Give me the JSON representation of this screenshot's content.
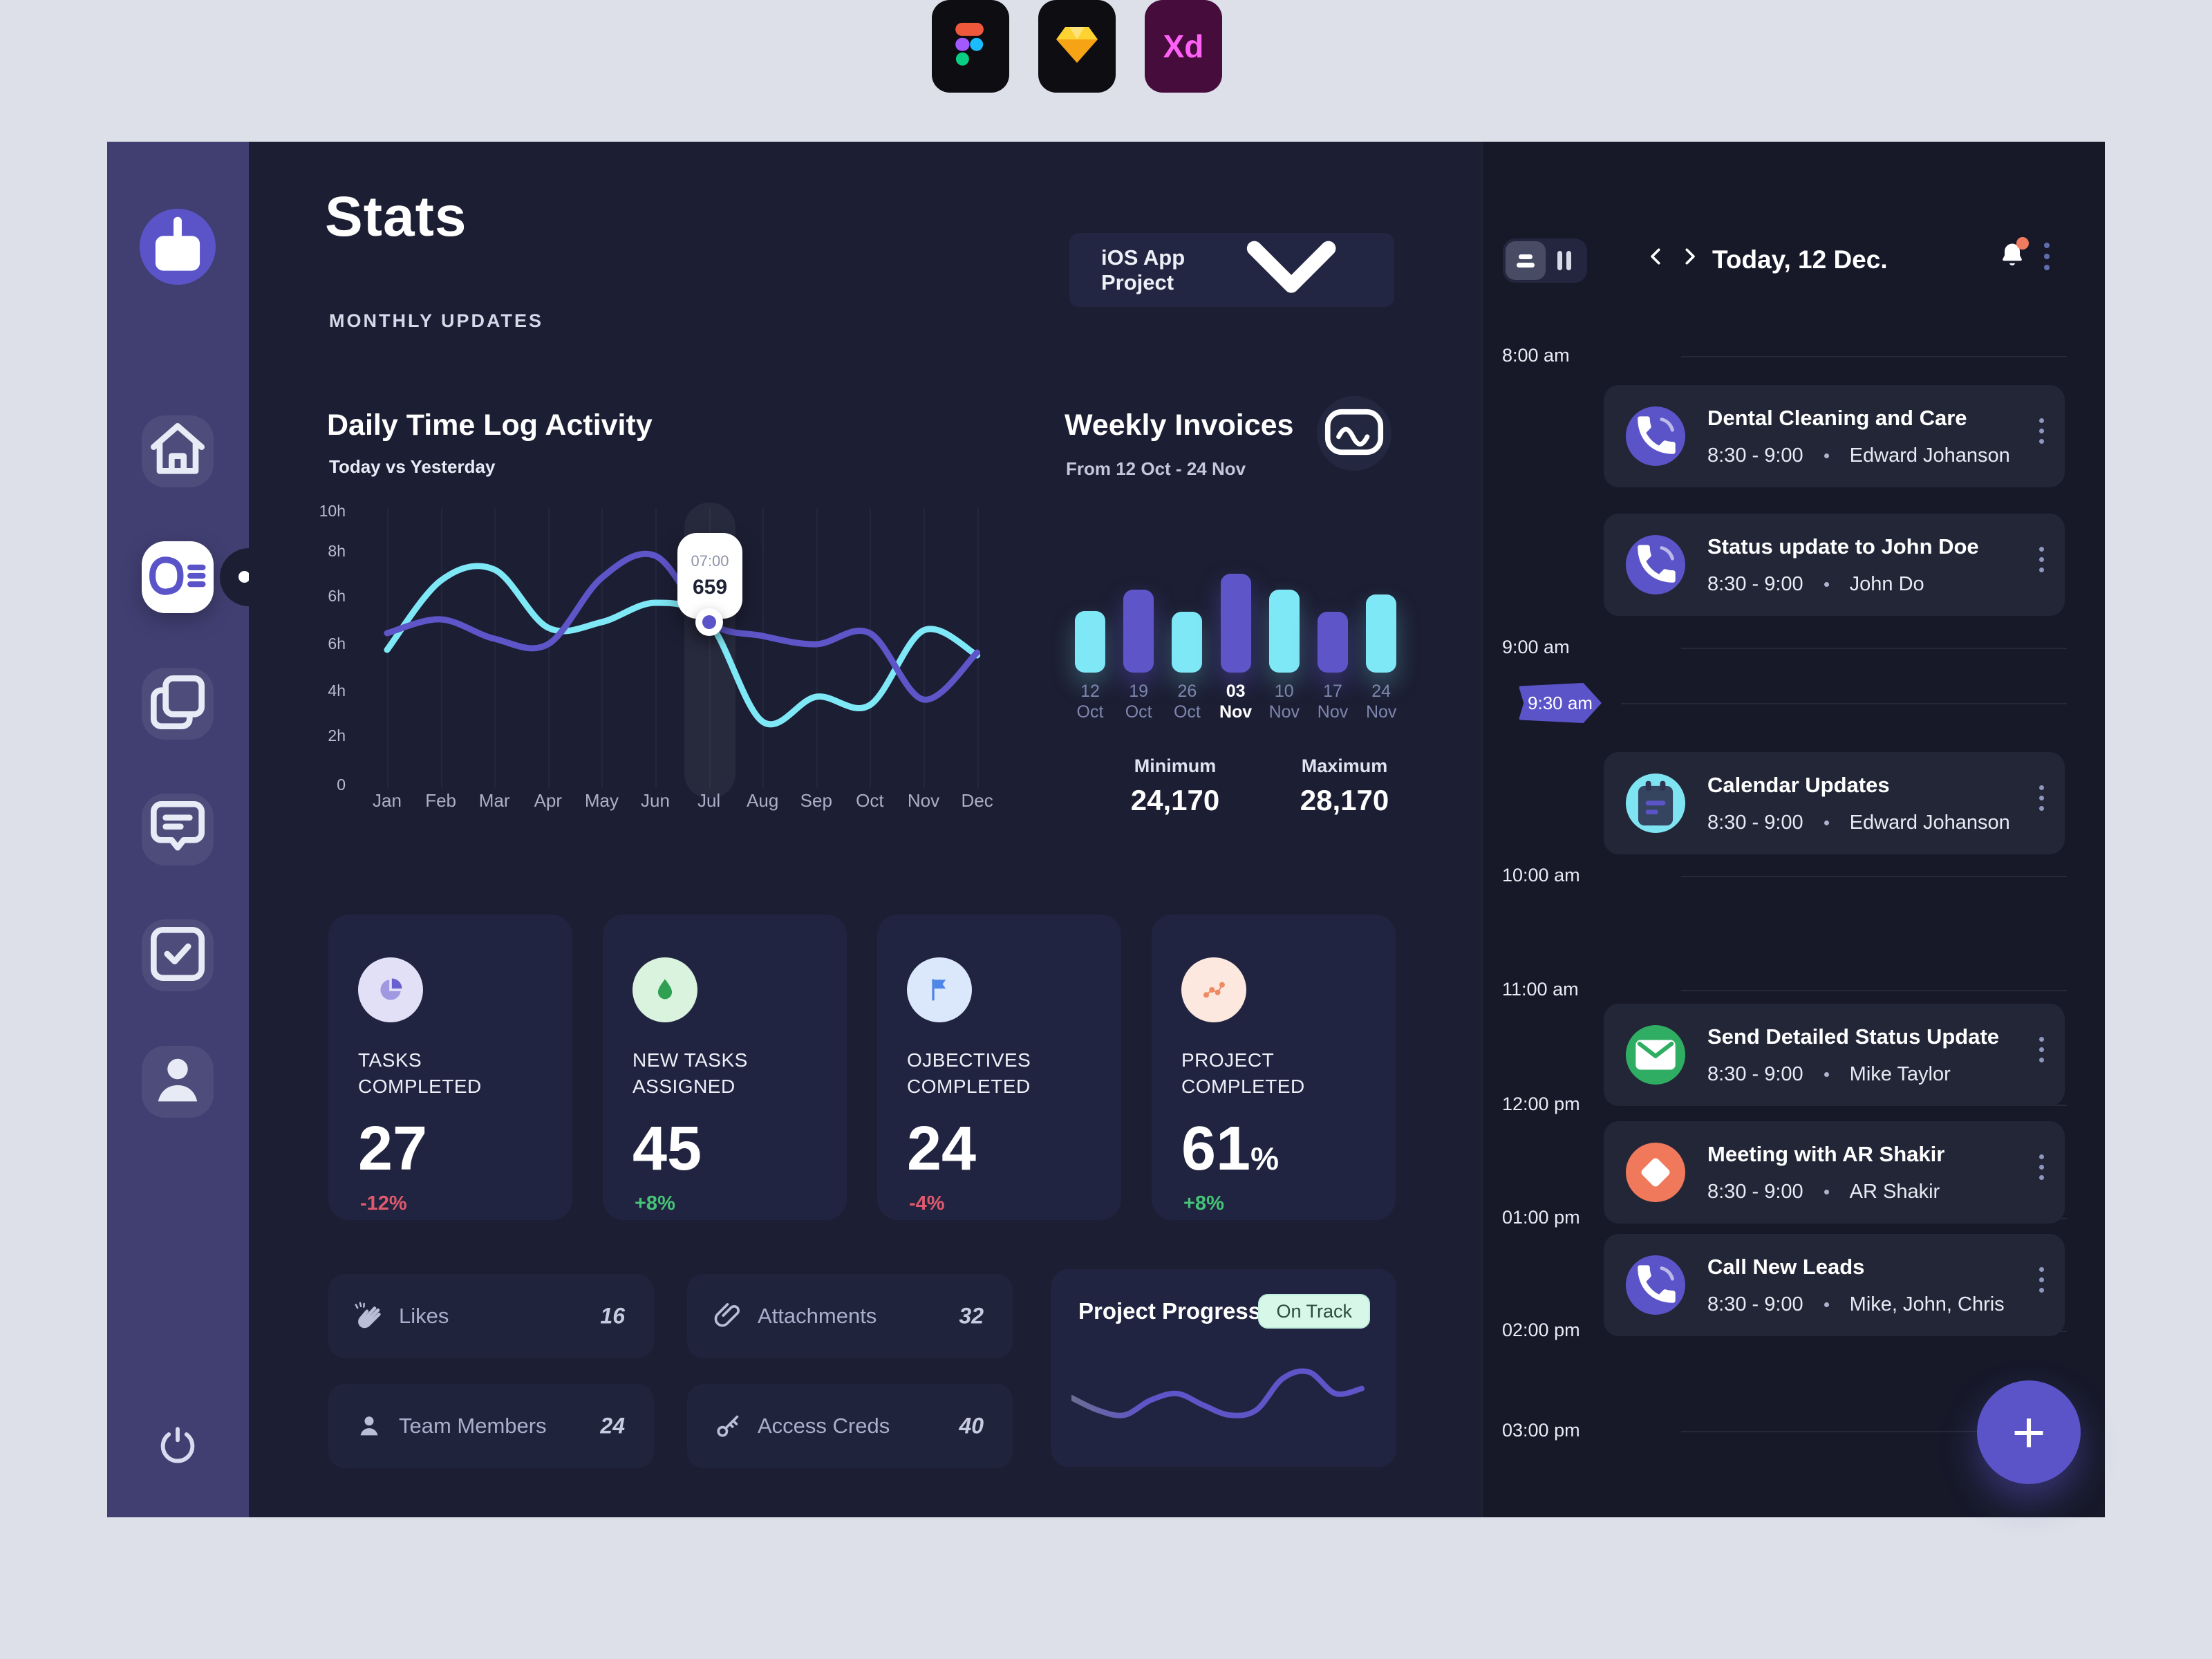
{
  "theme": {
    "accent": "#5b54c9",
    "cyan": "#7fe8f6",
    "bg_page": "#dde0e8",
    "bg_main": "#1c1e33",
    "bg_sidebar": "#413f72",
    "bg_panel": "#171929",
    "card": "#212440",
    "green": "#45c478",
    "red": "#e05a6d"
  },
  "app_badges": {
    "figma": "figma-logo",
    "sketch": "sketch-logo",
    "xd_label": "Xd"
  },
  "sidebar": {
    "items": [
      {
        "id": "home",
        "icon": "home",
        "active": false
      },
      {
        "id": "stats",
        "icon": "stats",
        "active": true
      },
      {
        "id": "documents",
        "icon": "copy",
        "active": false
      },
      {
        "id": "messages",
        "icon": "chat",
        "active": false
      },
      {
        "id": "tasks",
        "icon": "tasks",
        "active": false
      },
      {
        "id": "profile",
        "icon": "profile",
        "active": false
      }
    ]
  },
  "header": {
    "title": "Stats",
    "subtitle": "MONTHLY UPDATES",
    "project_selector": "iOS App Project"
  },
  "chart_data": [
    {
      "id": "daily_time_log",
      "type": "line",
      "title": "Daily Time Log Activity",
      "subtitle": "Today vs Yesterday",
      "x": [
        "Jan",
        "Feb",
        "Mar",
        "Apr",
        "May",
        "Jun",
        "Jul",
        "Aug",
        "Sep",
        "Oct",
        "Nov",
        "Dec"
      ],
      "y_ticks": [
        "10h",
        "8h",
        "6h",
        "6h",
        "4h",
        "2h",
        "0"
      ],
      "ylim": [
        0,
        10
      ],
      "grid": "vertical",
      "legend": "none",
      "series": [
        {
          "name": "Yesterday",
          "color": "#7fe8f6",
          "values": [
            5.0,
            7.5,
            7.9,
            5.8,
            6.0,
            6.7,
            6.0,
            2.4,
            3.3,
            3.0,
            5.7,
            4.8
          ]
        },
        {
          "name": "Today",
          "color": "#5e55c8",
          "values": [
            5.6,
            6.1,
            5.4,
            5.2,
            7.6,
            8.4,
            6.0,
            5.5,
            5.2,
            5.6,
            3.2,
            4.9
          ]
        }
      ],
      "highlight": {
        "x": "Jul",
        "series": "Today",
        "tooltip_time": "07:00",
        "tooltip_value": "659"
      }
    },
    {
      "id": "weekly_invoices",
      "type": "bar",
      "title": "Weekly Invoices",
      "subtitle": "From 12 Oct - 24 Nov",
      "categories_day": [
        "12",
        "19",
        "26",
        "03",
        "10",
        "17",
        "24"
      ],
      "categories_month": [
        "Oct",
        "Oct",
        "Oct",
        "Nov",
        "Nov",
        "Nov",
        "Nov"
      ],
      "values": [
        24270,
        26530,
        24170,
        28170,
        26530,
        24170,
        26020
      ],
      "active_index": 3,
      "bar_colors": [
        "#7fe8f6",
        "#5e55c8",
        "#7fe8f6",
        "#5e55c8",
        "#7fe8f6",
        "#5e55c8",
        "#7fe8f6"
      ],
      "min": {
        "label": "Minimum",
        "value": "24,170"
      },
      "max": {
        "label": "Maximum",
        "value": "28,170"
      }
    },
    {
      "id": "project_progress",
      "type": "line",
      "ylim": [
        0,
        100
      ],
      "series": [
        {
          "name": "Progress",
          "color": "#5e55c8",
          "values": [
            55,
            40,
            34,
            52,
            60,
            46,
            34,
            40,
            78,
            86,
            60,
            66
          ]
        }
      ]
    }
  ],
  "stat_cards": [
    {
      "label_line1": "TASKS",
      "label_line2": "COMPLETED",
      "value": "27",
      "suffix": "",
      "delta": "-12%",
      "trend": "down",
      "icon": "pie",
      "icon_bg": "#e2e0f6",
      "icon_fg": "#6a5fd0"
    },
    {
      "label_line1": "NEW TASKS",
      "label_line2": "ASSIGNED",
      "value": "45",
      "suffix": "",
      "delta": "+8%",
      "trend": "up",
      "icon": "drop",
      "icon_bg": "#d9f3de",
      "icon_fg": "#2fa052"
    },
    {
      "label_line1": "OJBECTIVES",
      "label_line2": "COMPLETED",
      "value": "24",
      "suffix": "",
      "delta": "-4%",
      "trend": "down",
      "icon": "flag",
      "icon_bg": "#dbe7fb",
      "icon_fg": "#4e86e8"
    },
    {
      "label_line1": "PROJECT",
      "label_line2": "COMPLETED",
      "value": "61",
      "suffix": "%",
      "delta": "+8%",
      "trend": "up",
      "icon": "scatter",
      "icon_bg": "#fce8de",
      "icon_fg": "#ee8a63"
    }
  ],
  "quick_cards": [
    {
      "label": "Likes",
      "value": "16",
      "icon": "clap"
    },
    {
      "label": "Attachments",
      "value": "32",
      "icon": "paperclip"
    },
    {
      "label": "Team Members",
      "value": "24",
      "icon": "person"
    },
    {
      "label": "Access Creds",
      "value": "40",
      "icon": "key"
    }
  ],
  "progress": {
    "title": "Project Progress",
    "badge": "On Track"
  },
  "schedule": {
    "title": "Today, 12 Dec.",
    "times": [
      {
        "label": "8:00 am",
        "style": "plain"
      },
      {
        "label": "9:00 am",
        "style": "plain"
      },
      {
        "label": "9:30 am",
        "style": "tag"
      },
      {
        "label": "10:00 am",
        "style": "plain"
      },
      {
        "label": "11:00 am",
        "style": "plain"
      },
      {
        "label": "12:00 pm",
        "style": "plain"
      },
      {
        "label": "01:00 pm",
        "style": "plain"
      },
      {
        "label": "02:00 pm",
        "style": "plain"
      },
      {
        "label": "03:00 pm",
        "style": "plain"
      }
    ],
    "events": [
      {
        "title": "Dental Cleaning and Care",
        "time": "8:30 - 9:00",
        "person": "Edward Johanson",
        "icon": "phone",
        "icon_bg": "#5b54c9",
        "icon_fg": "#ffffff"
      },
      {
        "title": "Status update to John Doe",
        "time": "8:30 - 9:00",
        "person": "John Do",
        "icon": "phone",
        "icon_bg": "#5b54c9",
        "icon_fg": "#ffffff"
      },
      {
        "title": "Calendar Updates",
        "time": "8:30 - 9:00",
        "person": "Edward Johanson",
        "icon": "calendar",
        "icon_bg": "#7fe4f2",
        "icon_fg": "#2e3350"
      },
      {
        "title": "Send Detailed Status Update",
        "time": "8:30 - 9:00",
        "person": "Mike Taylor",
        "icon": "mail",
        "icon_bg": "#2fae63",
        "icon_fg": "#ffffff"
      },
      {
        "title": "Meeting with AR Shakir",
        "time": "8:30 - 9:00",
        "person": "AR Shakir",
        "icon": "diamond",
        "icon_bg": "#f0795b",
        "icon_fg": "#ffffff"
      },
      {
        "title": "Call New Leads",
        "time": "8:30 - 9:00",
        "person": "Mike, John, Chris",
        "icon": "phone",
        "icon_bg": "#5b54c9",
        "icon_fg": "#ffffff"
      }
    ]
  }
}
